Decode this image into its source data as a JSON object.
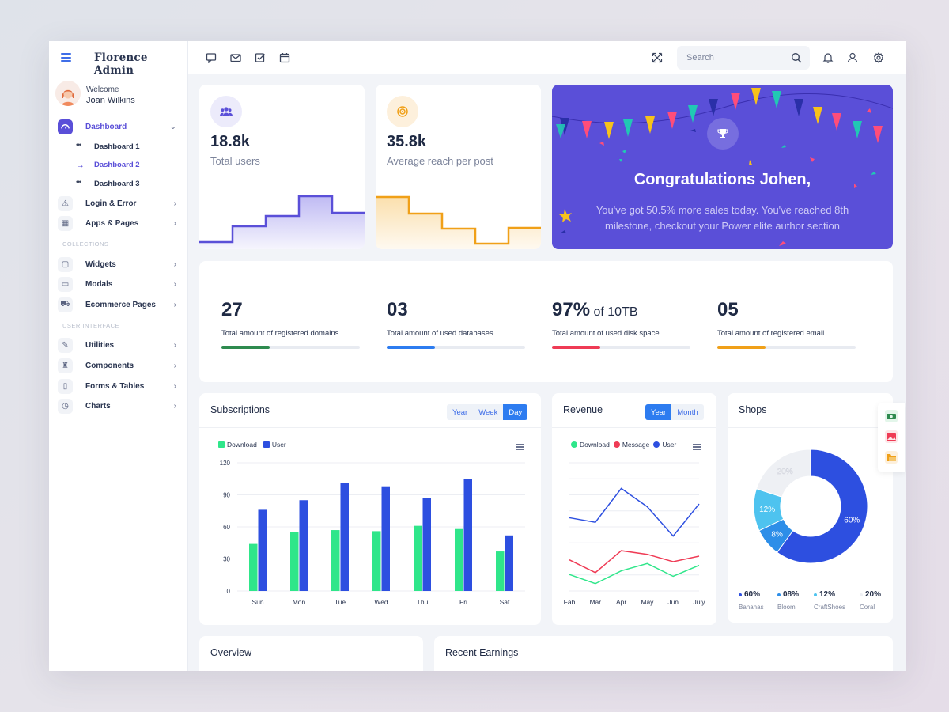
{
  "app": {
    "brand": "Florence Admin"
  },
  "profile": {
    "welcome": "Welcome",
    "name": "Joan Wilkins"
  },
  "sidebar": {
    "dashboard": "Dashboard",
    "sub": [
      "Dashboard 1",
      "Dashboard 2",
      "Dashboard 3"
    ],
    "login": "Login & Error",
    "apps": "Apps & Pages",
    "collections": "COLLECTIONS",
    "widgets": "Widgets",
    "modals": "Modals",
    "ecommerce": "Ecommerce Pages",
    "ui": "USER INTERFACE",
    "utilities": "Utilities",
    "components": "Components",
    "forms": "Forms & Tables",
    "charts": "Charts"
  },
  "search": {
    "placeholder": "Search"
  },
  "stats": {
    "users": {
      "value": "18.8k",
      "label": "Total users"
    },
    "reach": {
      "value": "35.8k",
      "label": "Average reach per post"
    }
  },
  "congrats": {
    "title": "Congratulations Johen,",
    "body": "You've got 50.5% more sales today. You've reached 8th milestone, checkout your Power elite author section"
  },
  "kpis": [
    {
      "value": "27",
      "suffix": "",
      "label": "Total amount of registered domains",
      "progress": 0.35,
      "color": "#2e8b4f"
    },
    {
      "value": "03",
      "suffix": "",
      "label": "Total amount of used databases",
      "progress": 0.35,
      "color": "#2d7cf0"
    },
    {
      "value": "97%",
      "suffix": " of 10TB",
      "label": "Total amount of used disk space",
      "progress": 0.35,
      "color": "#ef3b55"
    },
    {
      "value": "05",
      "suffix": "",
      "label": "Total amount of registered email",
      "progress": 0.35,
      "color": "#f0a018"
    }
  ],
  "subscriptions": {
    "title": "Subscriptions",
    "tabs": [
      "Year",
      "Week",
      "Day"
    ],
    "active": "Day"
  },
  "revenue": {
    "title": "Revenue",
    "tabs": [
      "Year",
      "Month"
    ],
    "active": "Year"
  },
  "shops": {
    "title": "Shops"
  },
  "overview": {
    "title": "Overview"
  },
  "earnings": {
    "title": "Recent Earnings"
  },
  "colors": {
    "primary": "#5a4fd8",
    "blue": "#2d4fe0",
    "green": "#2fe68a",
    "red": "#ef3b55",
    "accent": "#2d7cf0"
  },
  "chart_data": [
    {
      "type": "bar",
      "categories": [
        "Sun",
        "Mon",
        "Tue",
        "Wed",
        "Thu",
        "Fri",
        "Sat"
      ],
      "series": [
        {
          "name": "Download",
          "values": [
            44,
            55,
            57,
            56,
            61,
            58,
            37
          ],
          "color": "#2fe68a"
        },
        {
          "name": "User",
          "values": [
            76,
            85,
            101,
            98,
            87,
            105,
            52
          ],
          "color": "#2d4fe0"
        }
      ],
      "yticks": [
        0,
        30,
        60,
        90,
        120
      ],
      "ylim": [
        0,
        120
      ]
    },
    {
      "type": "line",
      "categories": [
        "Fab",
        "Mar",
        "Apr",
        "May",
        "Jun",
        "July"
      ],
      "series": [
        {
          "name": "Download",
          "values": [
            18,
            8,
            22,
            30,
            16,
            28
          ],
          "color": "#2fe68a"
        },
        {
          "name": "Message",
          "values": [
            34,
            20,
            44,
            40,
            32,
            38
          ],
          "color": "#ef3b55"
        },
        {
          "name": "User",
          "values": [
            80,
            75,
            112,
            92,
            60,
            95
          ],
          "color": "#2d4fe0"
        }
      ],
      "ylim": [
        0,
        140
      ]
    },
    {
      "type": "pie",
      "donut": true,
      "slices": [
        {
          "name": "Bananas",
          "value": 60,
          "label": "60%",
          "color": "#2d4fe0"
        },
        {
          "name": "Bloom",
          "value": 8,
          "label": "08%",
          "color": "#2d8ee8"
        },
        {
          "name": "CraftShoes",
          "value": 12,
          "label": "12%",
          "color": "#4ec3ef"
        },
        {
          "name": "Coral",
          "value": 20,
          "label": "20%",
          "color": "#eef0f4"
        }
      ],
      "slice_text": [
        "60%",
        "8%",
        "12%",
        "20%"
      ]
    }
  ]
}
